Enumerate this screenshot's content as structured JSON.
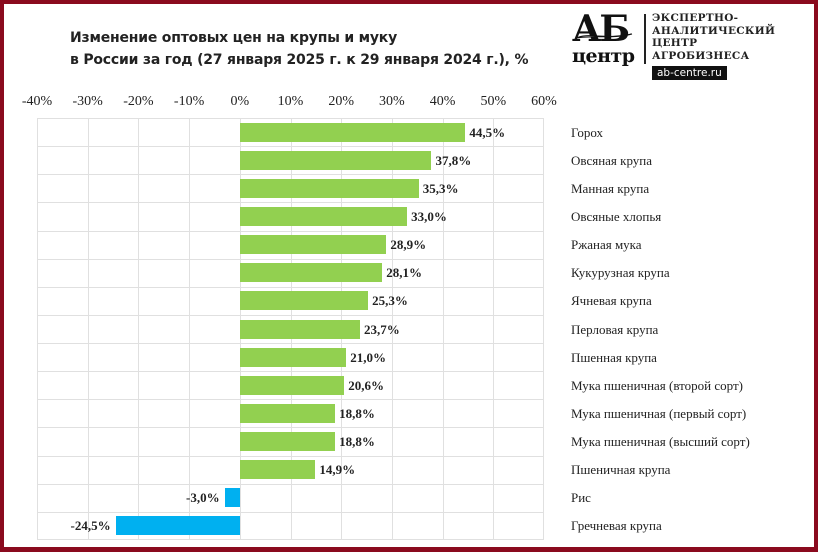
{
  "header": {
    "title_line1": "Изменение оптовых цен на крупы и муку",
    "title_line2": "в России за год (27 января 2025 г. к 29 января 2024 г.), %"
  },
  "logo": {
    "mark_top": "АБ",
    "mark_bottom": "центр",
    "lines": [
      "ЭКСПЕРТНО-",
      "АНАЛИТИЧЕСКИЙ",
      "ЦЕНТР",
      "АГРОБИЗНЕСА"
    ],
    "url": "ab-centre.ru"
  },
  "colors": {
    "frame": "#8a0a1e",
    "positive_bar": "#92d050",
    "negative_bar": "#00b0f0",
    "grid": "#e0e0e0"
  },
  "chart_data": {
    "type": "bar",
    "orientation": "horizontal",
    "title": "Изменение оптовых цен на крупы и муку в России за год (27 января 2025 г. к 29 января 2024 г.), %",
    "xlabel": "",
    "ylabel": "",
    "xlim": [
      -40,
      60
    ],
    "x_ticks": [
      "-40%",
      "-30%",
      "-20%",
      "-10%",
      "0%",
      "10%",
      "20%",
      "30%",
      "40%",
      "50%",
      "60%"
    ],
    "x_tick_values": [
      -40,
      -30,
      -20,
      -10,
      0,
      10,
      20,
      30,
      40,
      50,
      60
    ],
    "x_axis_position": "top",
    "grid": true,
    "legend": null,
    "categories": [
      "Горох",
      "Овсяная крупа",
      "Манная крупа",
      "Овсяные хлопья",
      "Ржаная мука",
      "Кукурузная крупа",
      "Ячневая крупа",
      "Перловая крупа",
      "Пшенная крупа",
      "Мука пшеничная (второй сорт)",
      "Мука пшеничная (первый сорт)",
      "Мука пшеничная (высший сорт)",
      "Пшеничная крупа",
      "Рис",
      "Гречневая крупа"
    ],
    "values": [
      44.5,
      37.8,
      35.3,
      33.0,
      28.9,
      28.1,
      25.3,
      23.7,
      21.0,
      20.6,
      18.8,
      18.8,
      14.9,
      -3.0,
      -24.5
    ],
    "value_labels": [
      "44,5%",
      "37,8%",
      "35,3%",
      "33,0%",
      "28,9%",
      "28,1%",
      "25,3%",
      "23,7%",
      "21,0%",
      "20,6%",
      "18,8%",
      "18,8%",
      "14,9%",
      "-3,0%",
      "-24,5%"
    ]
  }
}
